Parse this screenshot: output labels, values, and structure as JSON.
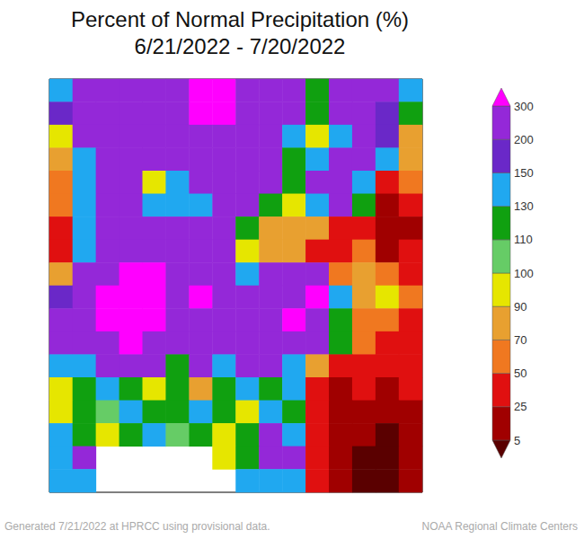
{
  "chart_data": {
    "type": "heatmap",
    "title": "Percent of Normal Precipitation (%)",
    "subtitle": "6/21/2022 - 7/20/2022",
    "annotations": [
      "Generated 7/21/2022 at HPRCC using provisional data.",
      "NOAA Regional Climate Centers"
    ],
    "tick_labels": false,
    "cells": [
      [
        140,
        220,
        220,
        220,
        220,
        220,
        350,
        350,
        220,
        220,
        220,
        120,
        220,
        220,
        220,
        140
      ],
      [
        170,
        220,
        220,
        220,
        220,
        220,
        350,
        350,
        220,
        220,
        220,
        120,
        220,
        220,
        170,
        120
      ],
      [
        90,
        220,
        220,
        220,
        220,
        220,
        220,
        220,
        220,
        220,
        140,
        95,
        140,
        220,
        170,
        80
      ],
      [
        80,
        140,
        220,
        220,
        220,
        220,
        220,
        220,
        220,
        220,
        120,
        140,
        220,
        220,
        140,
        80
      ],
      [
        60,
        130,
        220,
        220,
        95,
        140,
        220,
        220,
        220,
        220,
        120,
        220,
        220,
        140,
        40,
        60
      ],
      [
        60,
        130,
        220,
        220,
        140,
        140,
        140,
        220,
        220,
        120,
        95,
        140,
        220,
        120,
        15,
        40
      ],
      [
        40,
        130,
        220,
        220,
        220,
        220,
        220,
        220,
        120,
        80,
        80,
        80,
        40,
        40,
        15,
        15
      ],
      [
        40,
        140,
        220,
        220,
        220,
        220,
        220,
        220,
        95,
        80,
        80,
        40,
        40,
        60,
        15,
        40
      ],
      [
        80,
        220,
        220,
        350,
        350,
        220,
        220,
        220,
        130,
        220,
        220,
        220,
        60,
        80,
        60,
        40
      ],
      [
        170,
        220,
        350,
        350,
        350,
        220,
        350,
        220,
        220,
        220,
        220,
        350,
        140,
        80,
        95,
        60
      ],
      [
        220,
        220,
        350,
        350,
        350,
        220,
        220,
        220,
        220,
        220,
        350,
        220,
        120,
        60,
        60,
        40
      ],
      [
        220,
        220,
        220,
        350,
        220,
        220,
        220,
        220,
        220,
        220,
        220,
        220,
        110,
        60,
        40,
        40
      ],
      [
        140,
        140,
        220,
        220,
        220,
        120,
        220,
        140,
        220,
        220,
        140,
        80,
        40,
        40,
        40,
        40
      ],
      [
        95,
        120,
        140,
        120,
        95,
        120,
        80,
        120,
        140,
        120,
        140,
        40,
        15,
        40,
        15,
        40
      ],
      [
        95,
        120,
        105,
        140,
        120,
        120,
        140,
        120,
        95,
        140,
        120,
        40,
        15,
        15,
        15,
        15
      ],
      [
        140,
        120,
        95,
        120,
        140,
        105,
        120,
        95,
        120,
        220,
        140,
        40,
        15,
        15,
        3,
        15
      ],
      [
        140,
        220,
        null,
        null,
        null,
        null,
        null,
        95,
        120,
        220,
        220,
        40,
        15,
        3,
        3,
        15
      ],
      [
        140,
        140,
        null,
        null,
        null,
        null,
        null,
        null,
        140,
        140,
        140,
        40,
        15,
        3,
        3,
        15
      ]
    ],
    "colorbar": {
      "range": [
        5,
        300
      ],
      "ticks": [
        5,
        25,
        50,
        70,
        90,
        100,
        110,
        130,
        150,
        200,
        300
      ],
      "colors": [
        "#5a0000",
        "#a00000",
        "#e01010",
        "#f07820",
        "#e8a030",
        "#e6e600",
        "#66cc66",
        "#10a010",
        "#20a8f0",
        "#6a28c8",
        "#9428d8",
        "#ff00ff"
      ]
    }
  }
}
